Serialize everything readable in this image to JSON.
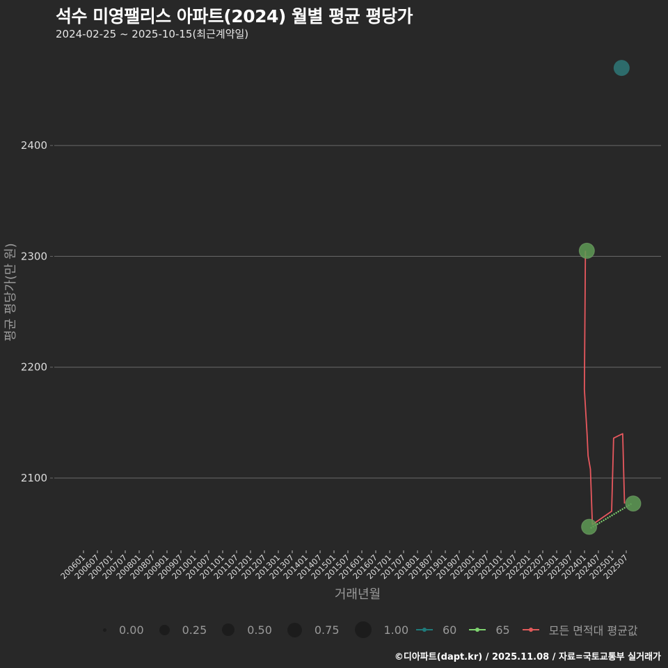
{
  "header": {
    "title": "석수 미영팰리스 아파트(2024) 월별 평균 평당가",
    "subtitle": "2024-02-25 ~ 2025-10-15(최근계약일)"
  },
  "axes": {
    "ylabel": "평균 평당가(만 원)",
    "xlabel": "거래년월"
  },
  "legend": {
    "size_items": [
      {
        "label": "0.00",
        "d": 5
      },
      {
        "label": "0.25",
        "d": 15
      },
      {
        "label": "0.50",
        "d": 18
      },
      {
        "label": "0.75",
        "d": 21
      },
      {
        "label": "1.00",
        "d": 24
      }
    ],
    "color_items": [
      {
        "label": "60",
        "color": "#1f7a7a"
      },
      {
        "label": "65",
        "color": "#7ed36f"
      },
      {
        "label": "모든 면적대 평균값",
        "color": "#e05a5a"
      }
    ]
  },
  "caption": "©디아파트(dapt.kr) / 2025.11.08 / 자료=국토교통부 실거래가",
  "colors": {
    "background": "#282828",
    "grid": "#6a6a6a",
    "series_60": "#2d6b6b",
    "series_65": "#5e9a55",
    "average_line": "#e8585e"
  },
  "chart_data": {
    "type": "line",
    "title": "석수 미영팰리스 아파트(2024) 월별 평균 평당가",
    "subtitle": "2024-02-25 ~ 2025-10-15(최근계약일)",
    "xlabel": "거래년월",
    "ylabel": "평균 평당가(만 원)",
    "ylim": [
      2035,
      2485
    ],
    "yticks": [
      2100,
      2200,
      2300,
      2400
    ],
    "grid": true,
    "legend_position": "bottom",
    "x_tick_labels": [
      "200601",
      "200607",
      "200701",
      "200707",
      "200801",
      "200807",
      "200901",
      "200907",
      "201001",
      "201007",
      "201101",
      "201107",
      "201201",
      "201207",
      "201301",
      "201307",
      "201401",
      "201407",
      "201501",
      "201507",
      "201601",
      "201607",
      "201701",
      "201707",
      "201801",
      "201807",
      "201901",
      "201907",
      "202001",
      "202007",
      "202101",
      "202107",
      "202201",
      "202207",
      "202301",
      "202307",
      "202401",
      "202407",
      "202501",
      "202507"
    ],
    "series": [
      {
        "name": "60",
        "kind": "point",
        "points": [
          {
            "x": "202505",
            "y": 2470
          }
        ]
      },
      {
        "name": "65",
        "kind": "line+point",
        "points": [
          {
            "x": "202402",
            "y": 2305
          },
          {
            "x": "202403",
            "y": 2056
          },
          {
            "x": "202510",
            "y": 2077
          }
        ]
      },
      {
        "name": "모든 면적대 평균값",
        "kind": "line",
        "points": [
          {
            "x": "202402",
            "y": 2305
          },
          {
            "x": "202402",
            "y": 2180
          },
          {
            "x": "202403",
            "y": 2140
          },
          {
            "x": "202403",
            "y": 2120
          },
          {
            "x": "202404",
            "y": 2108
          },
          {
            "x": "202405",
            "y": 2058
          },
          {
            "x": "202501",
            "y": 2070
          },
          {
            "x": "202502",
            "y": 2136
          },
          {
            "x": "202506",
            "y": 2140
          },
          {
            "x": "202507",
            "y": 2077
          }
        ]
      }
    ]
  }
}
